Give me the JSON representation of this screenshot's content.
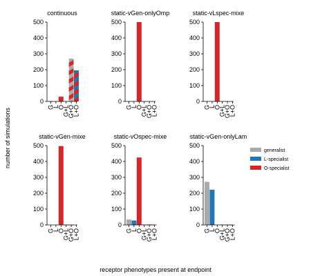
{
  "figure": {
    "ylabel": "number of simulations",
    "xlabel": "receptor phenotypes present at endpoint"
  },
  "legend": [
    {
      "name": "generalist",
      "color": "#aaaaaa"
    },
    {
      "name": "L-specialist",
      "color": "#1f77b4"
    },
    {
      "name": "O-specialist",
      "color": "#d62728"
    }
  ],
  "chart_data": [
    {
      "type": "bar",
      "stacked": true,
      "title": "continuous",
      "categories": [
        "G",
        "L",
        "O",
        "G+L",
        "G+O",
        "L+O"
      ],
      "ylim": [
        0,
        500
      ],
      "yticks": [
        "0",
        "100",
        "200",
        "300",
        "400",
        "500"
      ],
      "series": [
        {
          "name": "generalist",
          "color": "#aaaaaa",
          "values": [
            1,
            0,
            0,
            0,
            135,
            0
          ]
        },
        {
          "name": "L-specialist",
          "color": "#1f77b4",
          "values": [
            0,
            0,
            0,
            0,
            0,
            98
          ]
        },
        {
          "name": "O-specialist",
          "color": "#d62728",
          "values": [
            0,
            0,
            30,
            0,
            135,
            98
          ]
        }
      ],
      "hatched": [
        "G+O",
        "L+O"
      ]
    },
    {
      "type": "bar",
      "stacked": true,
      "title": "static-vGen-onlyOmp",
      "categories": [
        "G",
        "L",
        "O",
        "G+L",
        "G+O",
        "L+O"
      ],
      "ylim": [
        0,
        500
      ],
      "yticks": [
        "0",
        "100",
        "200",
        "300",
        "400",
        "500"
      ],
      "series": [
        {
          "name": "generalist",
          "color": "#aaaaaa",
          "values": [
            0,
            0,
            0,
            0,
            0,
            0
          ]
        },
        {
          "name": "L-specialist",
          "color": "#1f77b4",
          "values": [
            0,
            0,
            0,
            0,
            0,
            0
          ]
        },
        {
          "name": "O-specialist",
          "color": "#d62728",
          "values": [
            0,
            0,
            500,
            0,
            0,
            0
          ]
        }
      ]
    },
    {
      "type": "bar",
      "stacked": true,
      "title": "static-vLspec-mixe",
      "categories": [
        "G",
        "L",
        "O",
        "G+L",
        "G+O",
        "L+O"
      ],
      "ylim": [
        0,
        500
      ],
      "yticks": [
        "0",
        "100",
        "200",
        "300",
        "400",
        "500"
      ],
      "series": [
        {
          "name": "generalist",
          "color": "#aaaaaa",
          "values": [
            0,
            0,
            0,
            0,
            0,
            0
          ]
        },
        {
          "name": "L-specialist",
          "color": "#1f77b4",
          "values": [
            0,
            0,
            0,
            0,
            0,
            0
          ]
        },
        {
          "name": "O-specialist",
          "color": "#d62728",
          "values": [
            0,
            0,
            500,
            0,
            0,
            0
          ]
        }
      ]
    },
    {
      "type": "bar",
      "stacked": true,
      "title": "static-vGen-mixe",
      "categories": [
        "G",
        "L",
        "O",
        "G+L",
        "G+O",
        "L+O"
      ],
      "ylim": [
        0,
        500
      ],
      "yticks": [
        "0",
        "100",
        "200",
        "300",
        "400",
        "500"
      ],
      "series": [
        {
          "name": "generalist",
          "color": "#aaaaaa",
          "values": [
            0,
            0,
            0,
            0,
            0,
            0
          ]
        },
        {
          "name": "L-specialist",
          "color": "#1f77b4",
          "values": [
            0,
            0,
            0,
            0,
            0,
            0
          ]
        },
        {
          "name": "O-specialist",
          "color": "#d62728",
          "values": [
            0,
            0,
            497,
            2,
            1,
            0
          ]
        }
      ]
    },
    {
      "type": "bar",
      "stacked": true,
      "title": "static-vOspec-mixe",
      "categories": [
        "G",
        "L",
        "O",
        "G+L",
        "G+O",
        "L+O"
      ],
      "ylim": [
        0,
        500
      ],
      "yticks": [
        "0",
        "100",
        "200",
        "300",
        "400",
        "500"
      ],
      "series": [
        {
          "name": "generalist",
          "color": "#aaaaaa",
          "values": [
            35,
            0,
            0,
            0,
            0,
            0
          ]
        },
        {
          "name": "L-specialist",
          "color": "#1f77b4",
          "values": [
            0,
            28,
            0,
            0,
            0,
            0
          ]
        },
        {
          "name": "O-specialist",
          "color": "#d62728",
          "values": [
            0,
            0,
            425,
            2,
            3,
            2
          ]
        }
      ]
    },
    {
      "type": "bar",
      "stacked": true,
      "title": "static-vGen-onlyLam",
      "categories": [
        "G",
        "L",
        "O",
        "G+L",
        "G+O",
        "L+O"
      ],
      "ylim": [
        0,
        500
      ],
      "yticks": [
        "0",
        "100",
        "200",
        "300",
        "400",
        "500"
      ],
      "series": [
        {
          "name": "generalist",
          "color": "#aaaaaa",
          "values": [
            272,
            0,
            0,
            3,
            0,
            0
          ]
        },
        {
          "name": "L-specialist",
          "color": "#1f77b4",
          "values": [
            0,
            222,
            0,
            0,
            0,
            0
          ]
        },
        {
          "name": "O-specialist",
          "color": "#d62728",
          "values": [
            0,
            0,
            0,
            0,
            2,
            1
          ]
        }
      ]
    }
  ]
}
